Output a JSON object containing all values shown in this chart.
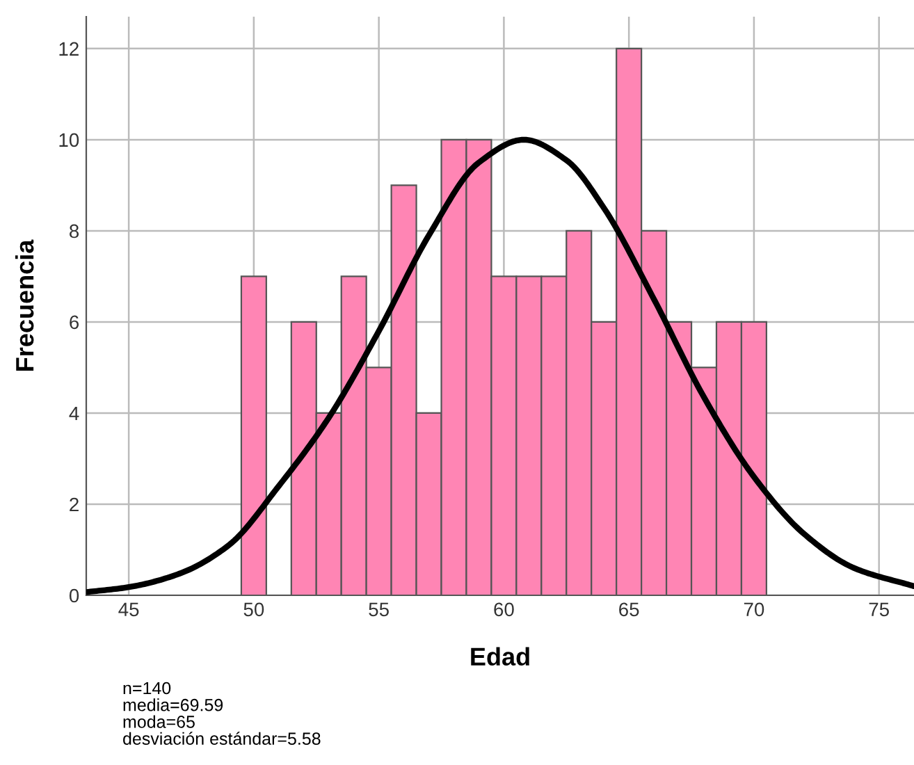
{
  "chart_data": {
    "type": "histogram",
    "xlabel": "Edad",
    "ylabel": "Frecuencia",
    "bins": [
      49.5,
      50.5,
      51.5,
      52.5,
      53.5,
      54.5,
      55.5,
      56.5,
      57.5,
      58.5,
      59.5,
      60.5,
      61.5,
      62.5,
      63.5,
      64.5,
      65.5,
      66.5,
      67.5,
      68.5,
      69.5,
      70.5
    ],
    "values": [
      7,
      0,
      6,
      4,
      7,
      5,
      9,
      4,
      10,
      10,
      7,
      7,
      7,
      8,
      6,
      12,
      8,
      6,
      5,
      6,
      6
    ],
    "color": "#ff85b4",
    "series": [
      {
        "type": "line",
        "color": "#000000",
        "x": [
          43.3,
          45,
          47,
          49,
          51,
          53,
          55,
          57,
          59,
          60.8,
          62.5,
          64,
          66,
          68,
          70,
          72,
          74,
          76.4
        ],
        "values": [
          0.07,
          0.18,
          0.47,
          1.1,
          2.4,
          3.9,
          5.8,
          7.9,
          9.5,
          10,
          9.55,
          8.5,
          6.5,
          4.35,
          2.6,
          1.35,
          0.6,
          0.2
        ]
      }
    ],
    "xlim": [
      43.3,
      76.4
    ],
    "xticks": [
      45,
      50,
      55,
      60,
      65,
      70,
      75
    ],
    "ylim": [
      0,
      12.7
    ],
    "yticks": [
      0,
      2,
      4,
      6,
      8,
      10,
      12
    ],
    "grid": true,
    "annotations": [
      "n=140\nmedia=69.59\nmoda=65\ndesviación estándar=5.58"
    ]
  }
}
